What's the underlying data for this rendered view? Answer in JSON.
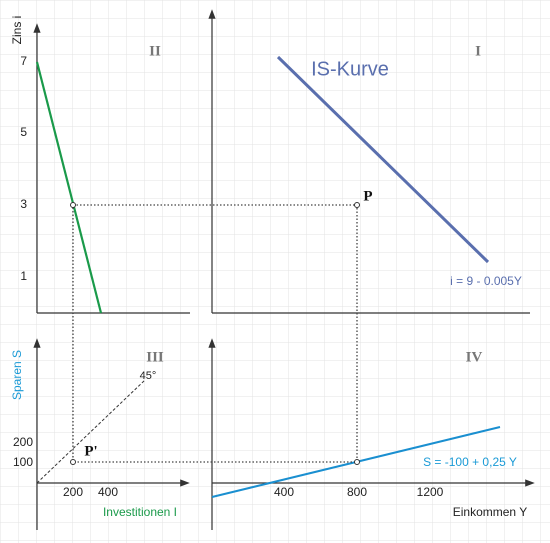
{
  "axes": {
    "interest": "Zins i",
    "savings": "Sparen S",
    "investment": "Investitionen I",
    "income": "Einkommen Y"
  },
  "interest_ticks": [
    "7",
    "5",
    "3",
    "1"
  ],
  "savings_ticks": [
    "200",
    "100"
  ],
  "investment_ticks": [
    "200",
    "400"
  ],
  "income_ticks": [
    "400",
    "800",
    "1200"
  ],
  "quadrants": [
    "II",
    "I",
    "III",
    "IV"
  ],
  "labels": {
    "is_curve": "IS-Kurve",
    "is_equation": "i = 9 - 0.005Y",
    "s_equation": "S = -100 + 0,25 Y",
    "angle": "45°",
    "p": "P",
    "p_prime": "P'"
  }
}
